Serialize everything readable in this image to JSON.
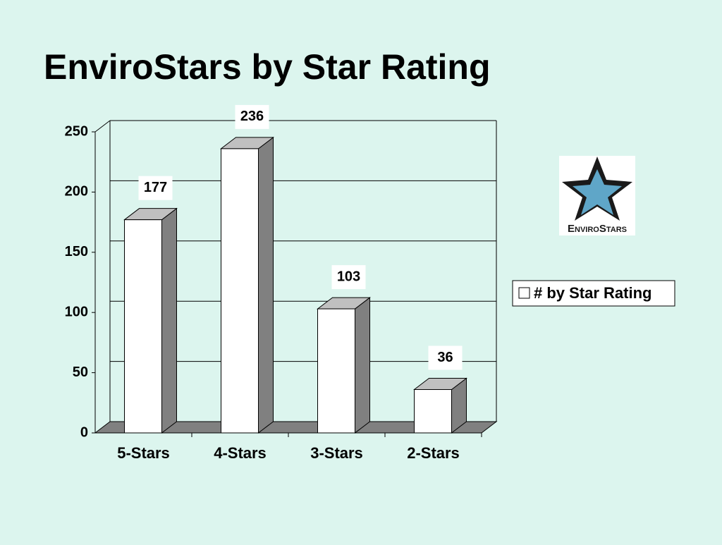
{
  "chart_data": {
    "type": "bar3d",
    "title": "EnviroStars by Star Rating",
    "categories": [
      "5-Stars",
      "4-Stars",
      "3-Stars",
      "2-Stars"
    ],
    "series": [
      {
        "name": "# by Star Rating",
        "color": "#ffffff",
        "values": [
          177,
          236,
          103,
          36
        ]
      }
    ],
    "ylim": [
      0,
      250
    ],
    "yticks": [
      0,
      50,
      100,
      150,
      200,
      250
    ],
    "grid": true,
    "legend": "right"
  },
  "logo": {
    "text": "EnviroStars"
  }
}
